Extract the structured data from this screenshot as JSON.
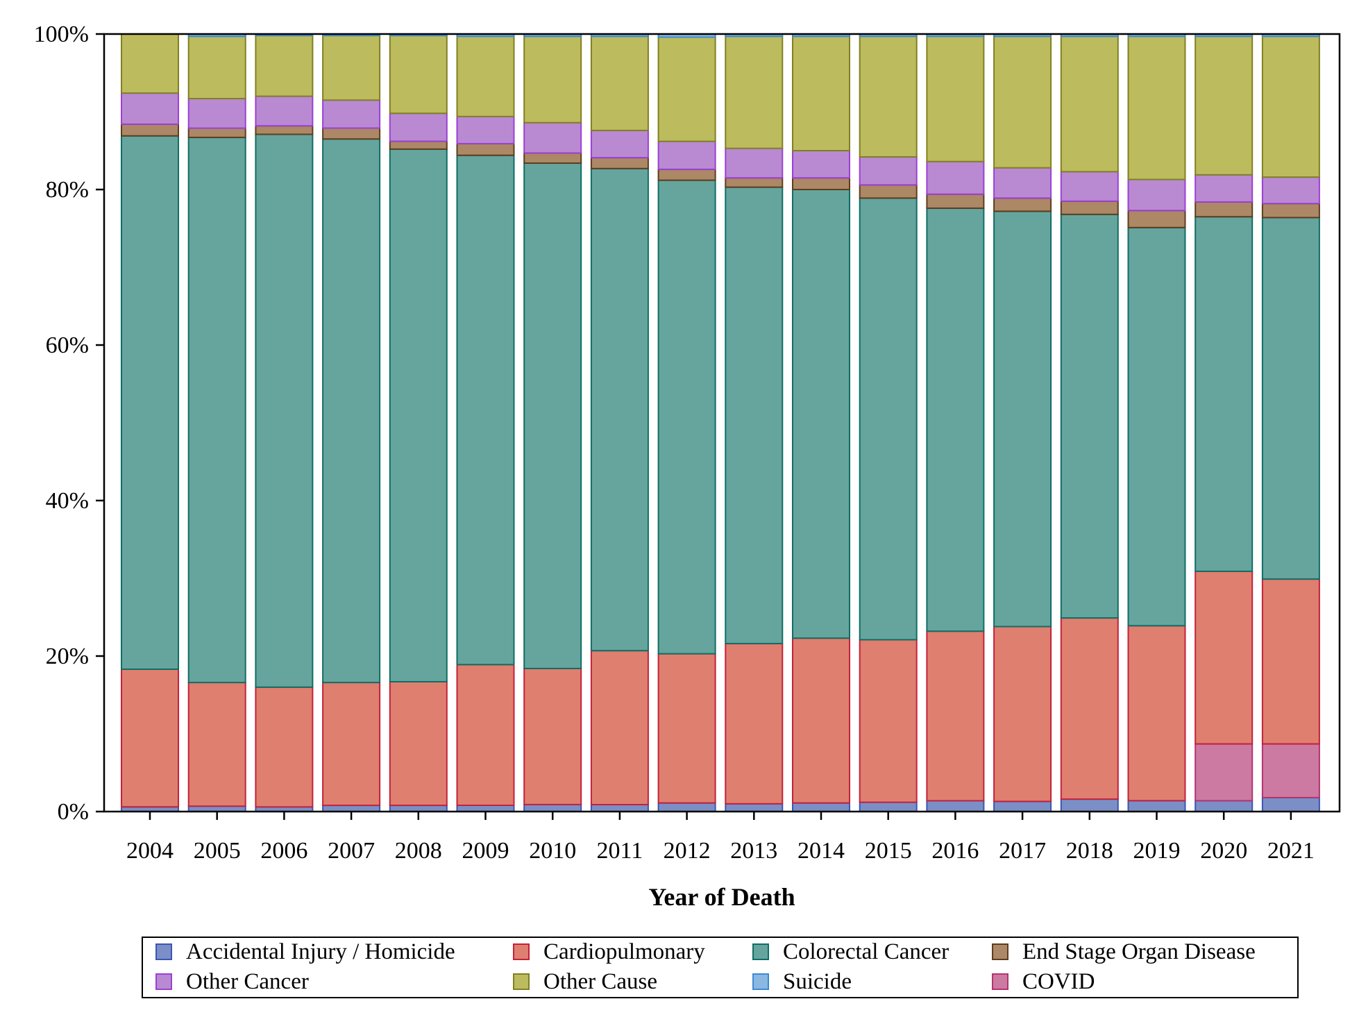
{
  "chart_data": {
    "type": "bar",
    "stacked": true,
    "percent": true,
    "title": "",
    "xlabel": "Year of Death",
    "ylabel": "",
    "ylim": [
      0,
      100
    ],
    "y_ticks": [
      "0%",
      "20%",
      "40%",
      "60%",
      "80%",
      "100%"
    ],
    "y_tick_values": [
      0,
      20,
      40,
      60,
      80,
      100
    ],
    "grid": false,
    "legend_position": "bottom",
    "categories": [
      "2004",
      "2005",
      "2006",
      "2007",
      "2008",
      "2009",
      "2010",
      "2011",
      "2012",
      "2013",
      "2014",
      "2015",
      "2016",
      "2017",
      "2018",
      "2019",
      "2020",
      "2021"
    ],
    "series": [
      {
        "name": "Accidental Injury / Homicide",
        "color": "#7b8fc6",
        "stroke": "#3b55b5",
        "values": [
          0.6,
          0.7,
          0.6,
          0.8,
          0.8,
          0.8,
          0.9,
          0.9,
          1.1,
          1.0,
          1.1,
          1.2,
          1.4,
          1.3,
          1.6,
          1.4,
          1.4,
          1.8
        ]
      },
      {
        "name": "COVID",
        "color": "#cc7aa2",
        "stroke": "#b4336f",
        "values": [
          0,
          0,
          0,
          0,
          0,
          0,
          0,
          0,
          0,
          0,
          0,
          0,
          0,
          0,
          0,
          0,
          7.3,
          6.9
        ]
      },
      {
        "name": "Cardiopulmonary",
        "color": "#df7f70",
        "stroke": "#c4213a",
        "values": [
          17.7,
          15.9,
          15.4,
          15.8,
          15.9,
          18.1,
          17.5,
          19.8,
          19.2,
          20.6,
          21.2,
          20.9,
          21.8,
          22.5,
          23.3,
          22.5,
          22.2,
          21.2
        ]
      },
      {
        "name": "Colorectal Cancer",
        "color": "#66a59e",
        "stroke": "#0f6e64",
        "values": [
          68.6,
          70.1,
          71.1,
          69.9,
          68.5,
          65.5,
          65.0,
          62.0,
          60.9,
          58.7,
          57.7,
          56.8,
          54.4,
          53.4,
          51.9,
          51.2,
          45.6,
          46.5
        ]
      },
      {
        "name": "End Stage Organ Disease",
        "color": "#ac8867",
        "stroke": "#5e3d1d",
        "values": [
          1.5,
          1.2,
          1.1,
          1.4,
          1.0,
          1.5,
          1.3,
          1.4,
          1.4,
          1.2,
          1.5,
          1.7,
          1.8,
          1.7,
          1.7,
          2.2,
          1.9,
          1.8
        ]
      },
      {
        "name": "Other Cancer",
        "color": "#b98ad1",
        "stroke": "#9c3fd6",
        "values": [
          4.0,
          3.8,
          3.8,
          3.6,
          3.6,
          3.5,
          3.9,
          3.5,
          3.6,
          3.8,
          3.5,
          3.6,
          4.2,
          3.9,
          3.8,
          4.0,
          3.5,
          3.4
        ]
      },
      {
        "name": "Other Cause",
        "color": "#bcbc5e",
        "stroke": "#808020",
        "values": [
          7.6,
          8.0,
          7.8,
          8.3,
          10.0,
          10.3,
          11.1,
          12.1,
          13.4,
          14.4,
          14.7,
          15.5,
          16.1,
          16.9,
          17.4,
          18.4,
          17.8,
          18.1
        ]
      },
      {
        "name": "Suicide",
        "color": "#8bb8e0",
        "stroke": "#3b8ad6",
        "values": [
          0,
          0.3,
          0.2,
          0.2,
          0.2,
          0.3,
          0.3,
          0.3,
          0.4,
          0.3,
          0.3,
          0.3,
          0.3,
          0.3,
          0.3,
          0.3,
          0.3,
          0.3
        ]
      }
    ],
    "legend_items": [
      {
        "name": "Accidental Injury / Homicide",
        "color": "#7b8fc6",
        "stroke": "#3b55b5"
      },
      {
        "name": "Cardiopulmonary",
        "color": "#df7f70",
        "stroke": "#c4213a"
      },
      {
        "name": "Colorectal Cancer",
        "color": "#66a59e",
        "stroke": "#0f6e64"
      },
      {
        "name": "End Stage Organ Disease",
        "color": "#ac8867",
        "stroke": "#5e3d1d"
      },
      {
        "name": "Other Cancer",
        "color": "#b98ad1",
        "stroke": "#9c3fd6"
      },
      {
        "name": "Other Cause",
        "color": "#bcbc5e",
        "stroke": "#808020"
      },
      {
        "name": "Suicide",
        "color": "#8bb8e0",
        "stroke": "#3b8ad6"
      },
      {
        "name": "COVID",
        "color": "#cc7aa2",
        "stroke": "#b4336f"
      }
    ]
  }
}
